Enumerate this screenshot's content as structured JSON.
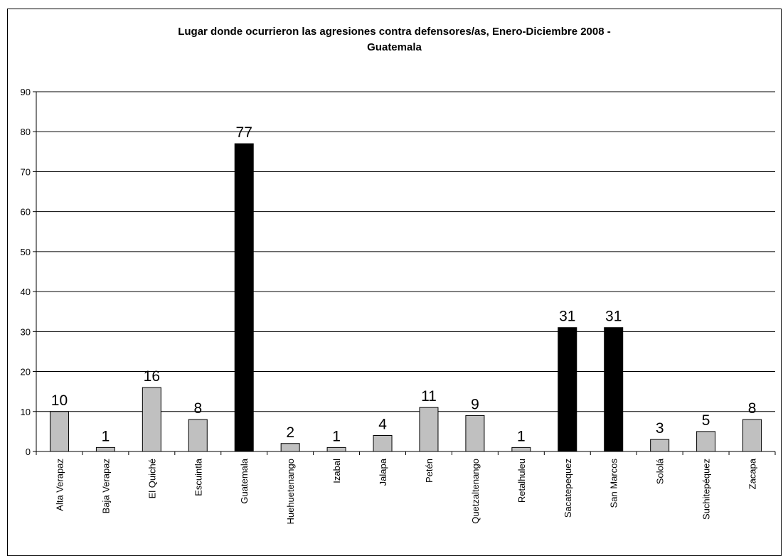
{
  "chart_data": {
    "type": "bar",
    "title": "Lugar donde ocurrieron las agresiones contra defensores/as, Enero-Diciembre  2008 -\nGuatemala",
    "xlabel": "",
    "ylabel": "",
    "ylim": [
      0,
      90
    ],
    "yticks": [
      0,
      10,
      20,
      30,
      40,
      50,
      60,
      70,
      80,
      90
    ],
    "grid": true,
    "categories": [
      "Alta Verapaz",
      "Baja Verapaz",
      "El Quiché",
      "Escuintla",
      "Guatemala",
      "Huehuetenango",
      "Izabal",
      "Jalapa",
      "Petén",
      "Quetzaltenango",
      "Retalhuleu",
      "Sacatepequez",
      "San Marcos",
      "Sololá",
      "Suchitepéquez",
      "Zacapa"
    ],
    "values": [
      10,
      1,
      16,
      8,
      77,
      2,
      1,
      4,
      11,
      9,
      1,
      31,
      31,
      3,
      5,
      8
    ],
    "bar_colors": [
      "#c0c0c0",
      "#c0c0c0",
      "#c0c0c0",
      "#c0c0c0",
      "#000000",
      "#c0c0c0",
      "#c0c0c0",
      "#c0c0c0",
      "#c0c0c0",
      "#c0c0c0",
      "#c0c0c0",
      "#000000",
      "#000000",
      "#c0c0c0",
      "#c0c0c0",
      "#c0c0c0"
    ],
    "data_labels": [
      "10",
      "1",
      "16",
      "8",
      "77",
      "2",
      "1",
      "4",
      "11",
      "9",
      "1",
      "31",
      "31",
      "3",
      "5",
      "8"
    ]
  }
}
